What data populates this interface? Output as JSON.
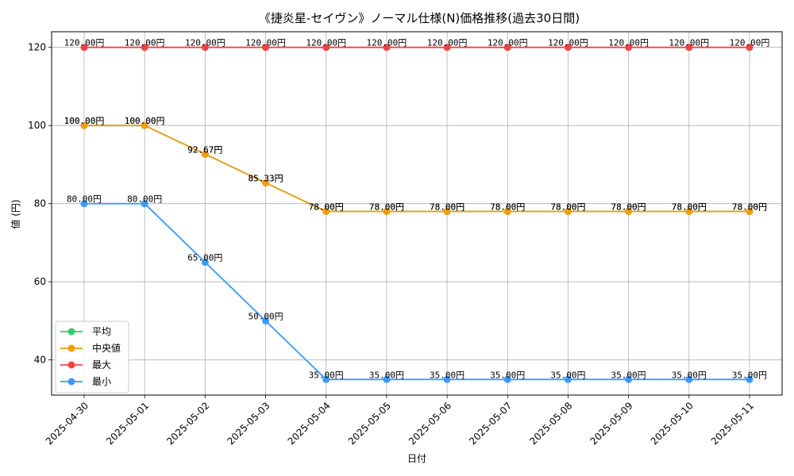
{
  "chart_data": {
    "type": "line",
    "title": "《捷炎星-セイヴン》ノーマル仕様(N)価格推移(過去30日間)",
    "xlabel": "日付",
    "ylabel": "値 (円)",
    "ylim": [
      31,
      124
    ],
    "yticks": [
      40,
      60,
      80,
      100,
      120
    ],
    "grid": true,
    "legend_position": "lower-left",
    "categories": [
      "2025-04-30",
      "2025-05-01",
      "2025-05-02",
      "2025-05-03",
      "2025-05-04",
      "2025-05-05",
      "2025-05-06",
      "2025-05-07",
      "2025-05-08",
      "2025-05-09",
      "2025-05-10",
      "2025-05-11"
    ],
    "series": [
      {
        "name": "平均",
        "color": "#2ecc71",
        "values": [
          100,
          100,
          92.67,
          85.33,
          78,
          78,
          78,
          78,
          78,
          78,
          78,
          78
        ],
        "labels": [
          "100.00円",
          "100.00円",
          "92.67円",
          "85.33円",
          "78.00円",
          "78.00円",
          "78.00円",
          "78.00円",
          "78.00円",
          "78.00円",
          "78.00円",
          "78.00円"
        ]
      },
      {
        "name": "中央値",
        "color": "#f39c12",
        "values": [
          100,
          100,
          92.67,
          85.33,
          78,
          78,
          78,
          78,
          78,
          78,
          78,
          78
        ],
        "labels": [
          "100.00円",
          "100.00円",
          "92.67円",
          "85.33円",
          "78.00円",
          "78.00円",
          "78.00円",
          "78.00円",
          "78.00円",
          "78.00円",
          "78.00円",
          "78.00円"
        ]
      },
      {
        "name": "最大",
        "color": "#ef4444",
        "values": [
          120,
          120,
          120,
          120,
          120,
          120,
          120,
          120,
          120,
          120,
          120,
          120
        ],
        "labels": [
          "120.00円",
          "120.00円",
          "120.00円",
          "120.00円",
          "120.00円",
          "120.00円",
          "120.00円",
          "120.00円",
          "120.00円",
          "120.00円",
          "120.00円",
          "120.00円"
        ]
      },
      {
        "name": "最小",
        "color": "#3b9aff",
        "values": [
          80,
          80,
          65,
          50,
          35,
          35,
          35,
          35,
          35,
          35,
          35,
          35
        ],
        "labels": [
          "80.00円",
          "80.00円",
          "65.00円",
          "50.00円",
          "35.00円",
          "35.00円",
          "35.00円",
          "35.00円",
          "35.00円",
          "35.00円",
          "35.00円",
          "35.00円"
        ]
      }
    ]
  }
}
